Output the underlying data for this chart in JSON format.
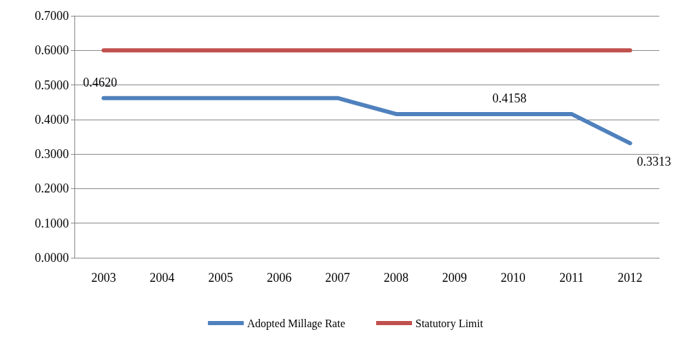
{
  "chart_data": {
    "type": "line",
    "categories": [
      "2003",
      "2004",
      "2005",
      "2006",
      "2007",
      "2008",
      "2009",
      "2010",
      "2011",
      "2012"
    ],
    "series": [
      {
        "name": "Adopted Millage Rate",
        "color": "#4f81bd",
        "values": [
          0.462,
          0.462,
          0.462,
          0.462,
          0.462,
          0.4158,
          0.4158,
          0.4158,
          0.4158,
          0.3313
        ],
        "value_labels": [
          "0.4620",
          null,
          null,
          null,
          null,
          null,
          null,
          "0.4158",
          null,
          "0.3313"
        ]
      },
      {
        "name": "Statutory Limit",
        "color": "#c0504d",
        "values": [
          0.6,
          0.6,
          0.6,
          0.6,
          0.6,
          0.6,
          0.6,
          0.6,
          0.6,
          0.6
        ]
      }
    ],
    "ylim": [
      0,
      0.7
    ],
    "yticks": [
      {
        "value": 0,
        "label": "0.0000"
      },
      {
        "value": 0.1,
        "label": "0.1000"
      },
      {
        "value": 0.2,
        "label": "0.2000"
      },
      {
        "value": 0.3,
        "label": "0.3000"
      },
      {
        "value": 0.4,
        "label": "0.4000"
      },
      {
        "value": 0.5,
        "label": "0.5000"
      },
      {
        "value": 0.6,
        "label": "0.6000"
      },
      {
        "value": 0.7,
        "label": "0.7000"
      }
    ],
    "grid": "y",
    "legend": "bottom",
    "marker": "none",
    "line_style": "solid"
  }
}
